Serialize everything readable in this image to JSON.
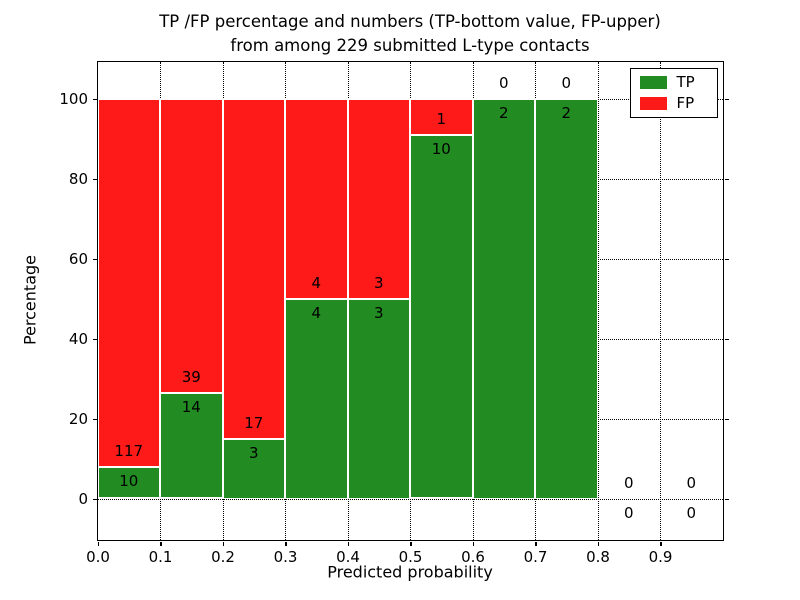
{
  "chart_data": {
    "type": "bar",
    "stacked": true,
    "normalized_to_percent": true,
    "title_line1": "TP /FP percentage and numbers (TP-bottom value, FP-upper)",
    "title_line2": "from among 229 submitted L-type contacts",
    "xlabel": "Predicted probability",
    "ylabel": "Percentage",
    "xlim": [
      0.0,
      1.0
    ],
    "ylim": [
      -10.25,
      109.25
    ],
    "x_tick_labels": [
      "0.0",
      "0.1",
      "0.2",
      "0.3",
      "0.4",
      "0.5",
      "0.6",
      "0.7",
      "0.8",
      "0.9"
    ],
    "x_tick_values": [
      0.0,
      0.1,
      0.2,
      0.3,
      0.4,
      0.5,
      0.6,
      0.7,
      0.8,
      0.9
    ],
    "y_tick_values": [
      0,
      20,
      40,
      60,
      80,
      100
    ],
    "grid": "dotted",
    "legend_position": "upper right",
    "legend": [
      {
        "label": "TP",
        "color": "#228b22"
      },
      {
        "label": "FP",
        "color": "#ff1a1a"
      }
    ],
    "colors": {
      "tp": "#228b22",
      "fp": "#ff1a1a",
      "bar_edge": "#ffffff",
      "axis": "#000000"
    },
    "bins": [
      {
        "x0": 0.0,
        "x1": 0.1,
        "tp": 10,
        "fp": 117
      },
      {
        "x0": 0.1,
        "x1": 0.2,
        "tp": 14,
        "fp": 39
      },
      {
        "x0": 0.2,
        "x1": 0.3,
        "tp": 3,
        "fp": 17
      },
      {
        "x0": 0.3,
        "x1": 0.4,
        "tp": 4,
        "fp": 4
      },
      {
        "x0": 0.4,
        "x1": 0.5,
        "tp": 3,
        "fp": 3
      },
      {
        "x0": 0.5,
        "x1": 0.6,
        "tp": 10,
        "fp": 1
      },
      {
        "x0": 0.6,
        "x1": 0.7,
        "tp": 2,
        "fp": 0
      },
      {
        "x0": 0.7,
        "x1": 0.8,
        "tp": 2,
        "fp": 0
      },
      {
        "x0": 0.8,
        "x1": 0.9,
        "tp": 0,
        "fp": 0
      },
      {
        "x0": 0.9,
        "x1": 1.0,
        "tp": 0,
        "fp": 0
      }
    ]
  }
}
